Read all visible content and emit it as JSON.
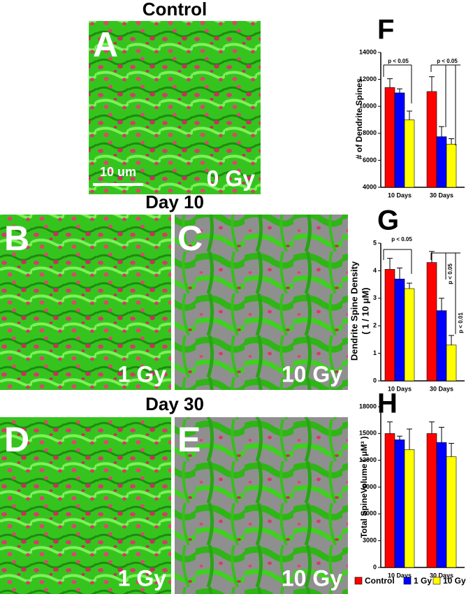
{
  "panels": {
    "title_control": "Control",
    "label_a": "A",
    "dose_a": "0 Gy",
    "scale_bar": "10 um",
    "title_day10": "Day 10",
    "label_b": "B",
    "dose_b": "1 Gy",
    "label_c": "C",
    "dose_c": "10 Gy",
    "title_day30": "Day 30",
    "label_d": "D",
    "dose_d": "1 Gy",
    "label_e": "E",
    "dose_e": "10 Gy"
  },
  "chart_data": [
    {
      "type": "bar",
      "panel_label": "F",
      "ylabel": "# of Dendrite Spines",
      "categories": [
        "10 Days",
        "30 Days"
      ],
      "series": [
        {
          "name": "Control",
          "color": "#ff0000",
          "values": [
            11400,
            11100
          ],
          "errors": [
            650,
            1100
          ]
        },
        {
          "name": "1 Gy",
          "color": "#0000ff",
          "values": [
            11000,
            7750
          ],
          "errors": [
            300,
            750
          ]
        },
        {
          "name": "10 Gy",
          "color": "#ffff00",
          "values": [
            9000,
            7200
          ],
          "errors": [
            650,
            400
          ]
        }
      ],
      "ylim": [
        4000,
        14000
      ],
      "yticks": [
        4000,
        6000,
        8000,
        10000,
        12000,
        14000
      ],
      "annotations": [
        "p < 0.05",
        "p < 0.05"
      ]
    },
    {
      "type": "bar",
      "panel_label": "G",
      "ylabel": [
        "Dendrite Spine Density",
        "( 1 / 10 μM)"
      ],
      "categories": [
        "10 Days",
        "30 Days"
      ],
      "series": [
        {
          "name": "Control",
          "color": "#ff0000",
          "values": [
            4.05,
            4.3
          ],
          "errors": [
            0.4,
            0.4
          ]
        },
        {
          "name": "1 Gy",
          "color": "#0000ff",
          "values": [
            3.7,
            2.55
          ],
          "errors": [
            0.4,
            0.45
          ]
        },
        {
          "name": "10 Gy",
          "color": "#ffff00",
          "values": [
            3.35,
            1.3
          ],
          "errors": [
            0.2,
            0.35
          ]
        }
      ],
      "ylim": [
        0,
        5
      ],
      "yticks": [
        0,
        1,
        2,
        3,
        4,
        5
      ],
      "annotations": [
        "p < 0.05",
        "p < 0.05",
        "p < 0.01"
      ]
    },
    {
      "type": "bar",
      "panel_label": "H",
      "ylabel": "Total SpineVolume ( μM³ )",
      "categories": [
        "10 Days",
        "30 Days"
      ],
      "series": [
        {
          "name": "Control",
          "color": "#ff0000",
          "values": [
            15000,
            15000
          ],
          "errors": [
            1300,
            1300
          ]
        },
        {
          "name": "1 Gy",
          "color": "#0000ff",
          "values": [
            14300,
            14000
          ],
          "errors": [
            400,
            1700
          ]
        },
        {
          "name": "10 Gy",
          "color": "#ffff00",
          "values": [
            13200,
            12400
          ],
          "errors": [
            2300,
            1500
          ]
        }
      ],
      "ylim": [
        0,
        18000
      ],
      "yticks": [
        0,
        3000,
        6000,
        9000,
        12000,
        15000,
        18000
      ],
      "legend": "bottom"
    }
  ]
}
